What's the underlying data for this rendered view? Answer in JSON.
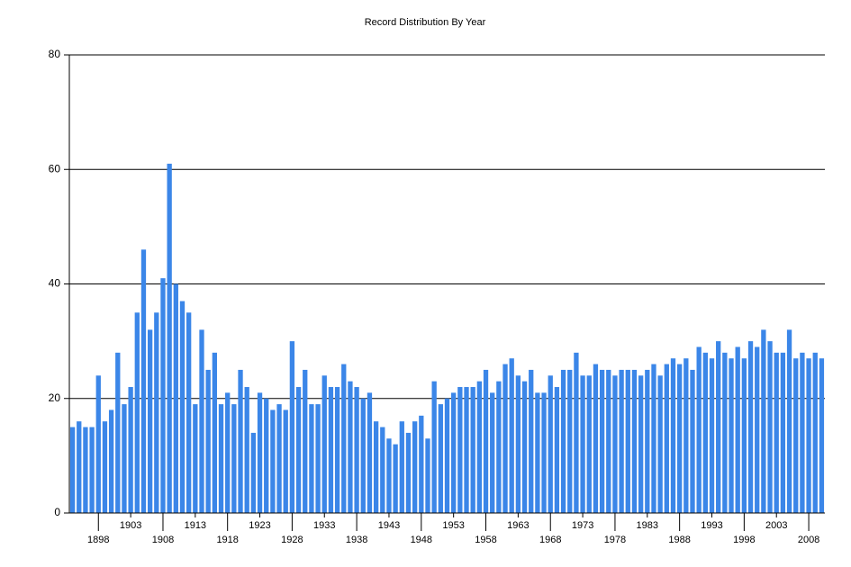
{
  "chart_data": {
    "type": "bar",
    "title": "Record Distribution By Year",
    "categories": [
      null,
      null,
      null,
      null,
      "1898",
      null,
      null,
      null,
      null,
      "1903",
      null,
      null,
      null,
      null,
      "1908",
      null,
      null,
      null,
      null,
      "1913",
      null,
      null,
      null,
      null,
      "1918",
      null,
      null,
      null,
      null,
      "1923",
      null,
      null,
      null,
      null,
      "1928",
      null,
      null,
      null,
      null,
      "1933",
      null,
      null,
      null,
      null,
      "1938",
      null,
      null,
      null,
      null,
      "1943",
      null,
      null,
      null,
      null,
      "1948",
      null,
      null,
      null,
      null,
      "1953",
      null,
      null,
      null,
      null,
      "1958",
      null,
      null,
      null,
      null,
      "1963",
      null,
      null,
      null,
      null,
      "1968",
      null,
      null,
      null,
      null,
      "1973",
      null,
      null,
      null,
      null,
      "1978",
      null,
      null,
      null,
      null,
      "1983",
      null,
      null,
      null,
      null,
      "1988",
      null,
      null,
      null,
      null,
      "1993",
      null,
      null,
      null,
      null,
      "1998",
      null,
      null,
      null,
      null,
      "2003",
      null,
      null,
      null,
      null,
      "2008",
      null,
      null
    ],
    "values": [
      15,
      16,
      15,
      15,
      24,
      16,
      18,
      28,
      19,
      22,
      35,
      46,
      32,
      35,
      41,
      61,
      40,
      37,
      35,
      19,
      32,
      25,
      28,
      19,
      21,
      19,
      25,
      22,
      14,
      21,
      20,
      18,
      19,
      18,
      30,
      22,
      25,
      19,
      19,
      24,
      22,
      22,
      26,
      23,
      22,
      20,
      21,
      16,
      15,
      13,
      12,
      16,
      14,
      16,
      17,
      13,
      23,
      19,
      20,
      21,
      22,
      22,
      22,
      23,
      25,
      21,
      23,
      26,
      27,
      24,
      23,
      25,
      21,
      21,
      24,
      22,
      25,
      25,
      28,
      24,
      24,
      26,
      25,
      25,
      24,
      25,
      25,
      25,
      24,
      25,
      26,
      24,
      26,
      27,
      26,
      27,
      25,
      29,
      28,
      27,
      30,
      28,
      27,
      29,
      27,
      30,
      29,
      32,
      30,
      28,
      28,
      32,
      27,
      28,
      27,
      28,
      27
    ],
    "color": "#3b86e8",
    "ylim": [
      0,
      80
    ],
    "yticks": [
      0,
      20,
      40,
      60,
      80
    ],
    "grid": true
  }
}
